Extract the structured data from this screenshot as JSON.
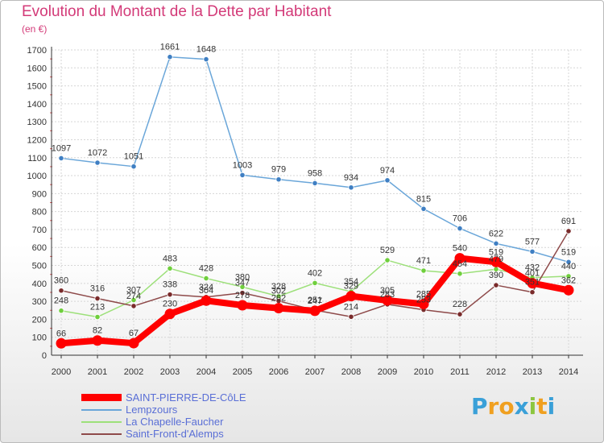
{
  "header": {
    "title": "Evolution du Montant de la Dette par Habitant",
    "subtitle": "(en €)"
  },
  "logo": {
    "letters": [
      "P",
      "r",
      "o",
      "x",
      "i",
      "t",
      "i"
    ],
    "colors": [
      "#3aa0d8",
      "#f0a020",
      "#f0a020",
      "#3aa0d8",
      "#8cc63f",
      "#f0a020",
      "#3aa0d8"
    ]
  },
  "chart_data": {
    "type": "line",
    "title": "Evolution du Montant de la Dette par Habitant",
    "ylabel": "(en €)",
    "xlabel": "",
    "x": [
      "2000",
      "2001",
      "2002",
      "2003",
      "2004",
      "2005",
      "2006",
      "2007",
      "2008",
      "2009",
      "2010",
      "2011",
      "2012",
      "2013",
      "2014"
    ],
    "ylim": [
      0,
      1700
    ],
    "yticks": [
      0,
      100,
      200,
      300,
      400,
      500,
      600,
      700,
      800,
      900,
      1000,
      1100,
      1200,
      1300,
      1400,
      1500,
      1600,
      1700
    ],
    "grid": true,
    "legend_position": "bottom-left",
    "series": [
      {
        "name": "Lempzours",
        "color": "#6aa6d9",
        "marker": "#3f7fc3",
        "values": [
          1097,
          1072,
          1051,
          1661,
          1648,
          1003,
          979,
          958,
          934,
          974,
          815,
          706,
          622,
          577,
          519
        ]
      },
      {
        "name": "La Chapelle-Faucher",
        "color": "#9de07a",
        "marker": "#6fcf3c",
        "values": [
          248,
          213,
          307,
          483,
          428,
          380,
          328,
          402,
          354,
          529,
          471,
          454,
          479,
          432,
          440
        ]
      },
      {
        "name": "Saint-Front-d'Alemps",
        "color": "#8e4a4a",
        "marker": "#7a2b2b",
        "values": [
          360,
          316,
          274,
          338,
          324,
          347,
          302,
          251,
          214,
          283,
          253,
          228,
          390,
          351,
          691
        ]
      },
      {
        "name": "SAINT-PIERRE-DE-CôLE",
        "color": "#ff0000",
        "marker": "#ff0000",
        "values": [
          66,
          82,
          67,
          230,
          304,
          278,
          262,
          247,
          329,
          305,
          285,
          540,
          519,
          401,
          362
        ]
      }
    ]
  }
}
